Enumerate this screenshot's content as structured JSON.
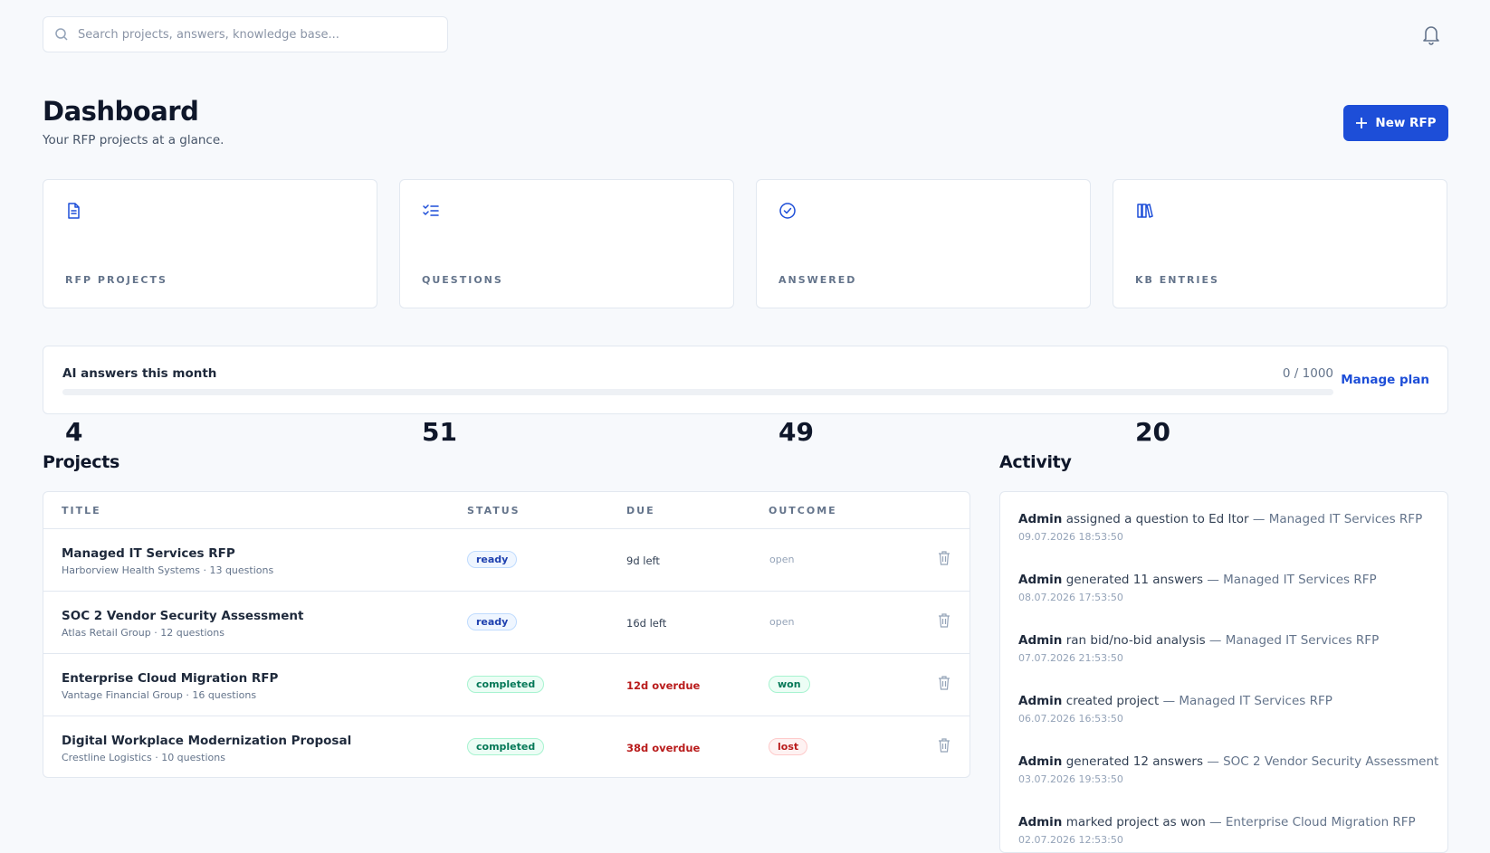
{
  "search": {
    "placeholder": "Search projects, answers, knowledge base..."
  },
  "header": {
    "title": "Dashboard",
    "subtitle": "Your RFP projects at a glance.",
    "button": "New RFP"
  },
  "stats": [
    {
      "value": "4",
      "label": "RFP PROJECTS"
    },
    {
      "value": "51",
      "label": "QUESTIONS"
    },
    {
      "value": "49",
      "label": "ANSWERED"
    },
    {
      "value": "20",
      "label": "KB ENTRIES"
    }
  ],
  "usage": {
    "label": "AI answers this month",
    "count": "0 / 1000",
    "link": "Manage plan"
  },
  "projects": {
    "title": "Projects",
    "columns": [
      "TITLE",
      "STATUS",
      "DUE",
      "OUTCOME"
    ],
    "rows": [
      {
        "title": "Managed IT Services RFP",
        "meta": "Harborview Health Systems · 13 questions",
        "status": "ready",
        "status_tone": "blue",
        "due": "9d left",
        "due_tone": "plain",
        "outcome": "open",
        "outcome_tone": "plain"
      },
      {
        "title": "SOC 2 Vendor Security Assessment",
        "meta": "Atlas Retail Group · 12 questions",
        "status": "ready",
        "status_tone": "blue",
        "due": "16d left",
        "due_tone": "plain",
        "outcome": "open",
        "outcome_tone": "plain"
      },
      {
        "title": "Enterprise Cloud Migration RFP",
        "meta": "Vantage Financial Group · 16 questions",
        "status": "completed",
        "status_tone": "green",
        "due": "12d overdue",
        "due_tone": "red",
        "outcome": "won",
        "outcome_tone": "green"
      },
      {
        "title": "Digital Workplace Modernization Proposal",
        "meta": "Crestline Logistics · 10 questions",
        "status": "completed",
        "status_tone": "green",
        "due": "38d overdue",
        "due_tone": "red",
        "outcome": "lost",
        "outcome_tone": "red"
      }
    ]
  },
  "activity": {
    "title": "Activity",
    "items": [
      {
        "actor": "Admin",
        "action": "assigned a question to Ed Itor",
        "project": "— Managed IT Services RFP",
        "time": "09.07.2026 18:53:50"
      },
      {
        "actor": "Admin",
        "action": "generated 11 answers",
        "project": "— Managed IT Services RFP",
        "time": "08.07.2026 17:53:50"
      },
      {
        "actor": "Admin",
        "action": "ran bid/no-bid analysis",
        "project": "— Managed IT Services RFP",
        "time": "07.07.2026 21:53:50"
      },
      {
        "actor": "Admin",
        "action": "created project",
        "project": "— Managed IT Services RFP",
        "time": "06.07.2026 16:53:50"
      },
      {
        "actor": "Admin",
        "action": "generated 12 answers",
        "project": "— SOC 2 Vendor Security Assessment",
        "time": "03.07.2026 19:53:50"
      },
      {
        "actor": "Admin",
        "action": "marked project as won",
        "project": "— Enterprise Cloud Migration RFP",
        "time": "02.07.2026 12:53:50"
      }
    ]
  }
}
